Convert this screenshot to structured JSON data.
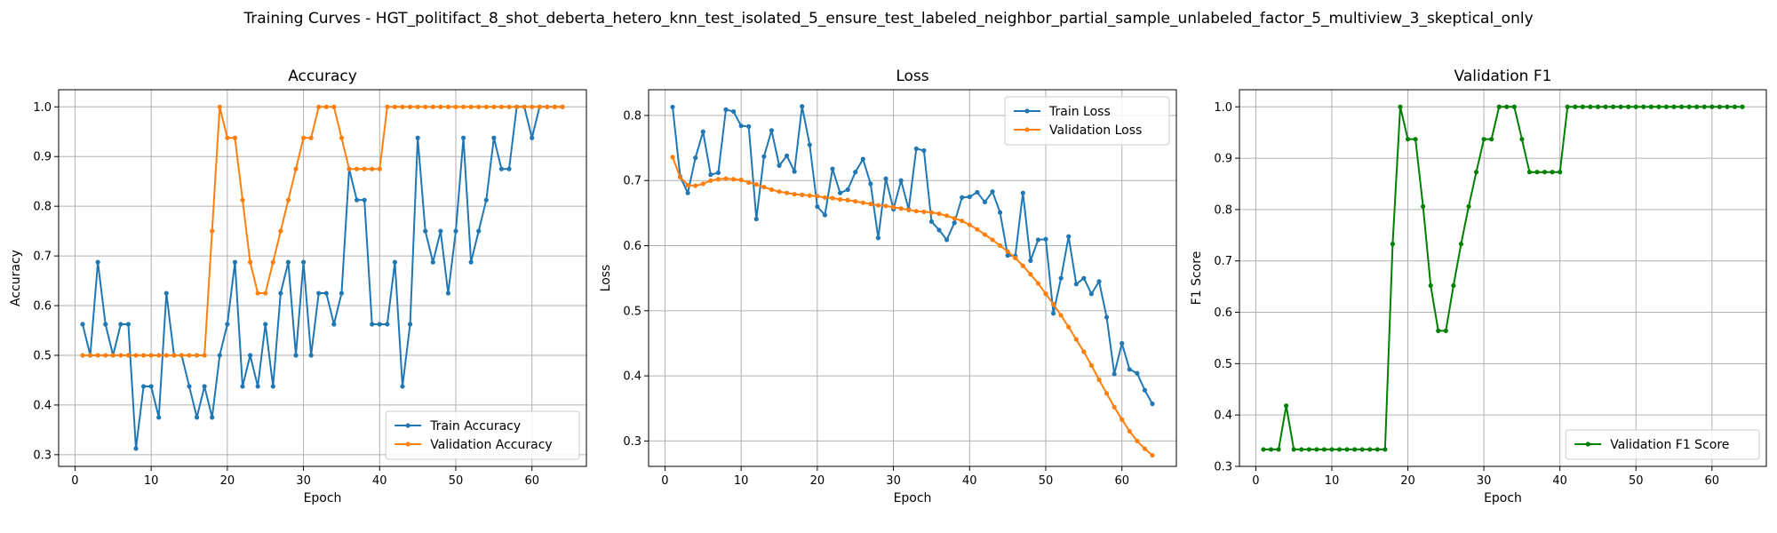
{
  "figure": {
    "suptitle": "Training Curves - HGT_politifact_8_shot_deberta_hetero_knn_test_isolated_5_ensure_test_labeled_neighbor_partial_sample_unlabeled_factor_5_multiview_3_skeptical_only"
  },
  "colors": {
    "blue": "#1f77b4",
    "orange": "#ff7f0e",
    "green": "#008000",
    "grid": "#b0b0b0"
  },
  "chart_data": [
    {
      "type": "line",
      "title": "Accuracy",
      "xlabel": "Epoch",
      "ylabel": "Accuracy",
      "xlim": [
        -2.15,
        67.15
      ],
      "ylim": [
        0.2765,
        1.0345
      ],
      "xticks": [
        0,
        10,
        20,
        30,
        40,
        50,
        60
      ],
      "yticks": [
        0.3,
        0.4,
        0.5,
        0.6,
        0.7,
        0.8,
        0.9,
        1.0
      ],
      "ytick_labels": [
        "0.3",
        "0.4",
        "0.5",
        "0.6",
        "0.7",
        "0.8",
        "0.9",
        "1.0"
      ],
      "grid": true,
      "legend": "lower-right",
      "x": [
        1,
        2,
        3,
        4,
        5,
        6,
        7,
        8,
        9,
        10,
        11,
        12,
        13,
        14,
        15,
        16,
        17,
        18,
        19,
        20,
        21,
        22,
        23,
        24,
        25,
        26,
        27,
        28,
        29,
        30,
        31,
        32,
        33,
        34,
        35,
        36,
        37,
        38,
        39,
        40,
        41,
        42,
        43,
        44,
        45,
        46,
        47,
        48,
        49,
        50,
        51,
        52,
        53,
        54,
        55,
        56,
        57,
        58,
        59,
        60,
        61,
        62,
        63,
        64
      ],
      "series": [
        {
          "name": "Train Accuracy",
          "color": "#1f77b4",
          "values": [
            0.5625,
            0.5,
            0.6875,
            0.5625,
            0.5,
            0.5625,
            0.5625,
            0.3125,
            0.4375,
            0.4375,
            0.375,
            0.625,
            0.5,
            0.5,
            0.4375,
            0.375,
            0.4375,
            0.375,
            0.5,
            0.5625,
            0.6875,
            0.4375,
            0.5,
            0.4375,
            0.5625,
            0.4375,
            0.625,
            0.6875,
            0.5,
            0.6875,
            0.5,
            0.625,
            0.625,
            0.5625,
            0.625,
            0.875,
            0.8125,
            0.8125,
            0.5625,
            0.5625,
            0.5625,
            0.6875,
            0.4375,
            0.5625,
            0.9375,
            0.75,
            0.6875,
            0.75,
            0.625,
            0.75,
            0.9375,
            0.6875,
            0.75,
            0.8125,
            0.9375,
            0.875,
            0.875,
            1.0,
            1.0,
            0.9375,
            1.0,
            1.0,
            1.0,
            1.0
          ]
        },
        {
          "name": "Validation Accuracy",
          "color": "#ff7f0e",
          "values": [
            0.5,
            0.5,
            0.5,
            0.5,
            0.5,
            0.5,
            0.5,
            0.5,
            0.5,
            0.5,
            0.5,
            0.5,
            0.5,
            0.5,
            0.5,
            0.5,
            0.5,
            0.75,
            1.0,
            0.9375,
            0.9375,
            0.8125,
            0.6875,
            0.625,
            0.625,
            0.6875,
            0.75,
            0.8125,
            0.875,
            0.9375,
            0.9375,
            1.0,
            1.0,
            1.0,
            0.9375,
            0.875,
            0.875,
            0.875,
            0.875,
            0.875,
            1.0,
            1.0,
            1.0,
            1.0,
            1.0,
            1.0,
            1.0,
            1.0,
            1.0,
            1.0,
            1.0,
            1.0,
            1.0,
            1.0,
            1.0,
            1.0,
            1.0,
            1.0,
            1.0,
            1.0,
            1.0,
            1.0,
            1.0,
            1.0
          ]
        }
      ]
    },
    {
      "type": "line",
      "title": "Loss",
      "xlabel": "Epoch",
      "ylabel": "Loss",
      "xlim": [
        -2.15,
        67.15
      ],
      "ylim": [
        0.261,
        0.8395
      ],
      "xticks": [
        0,
        10,
        20,
        30,
        40,
        50,
        60
      ],
      "yticks": [
        0.3,
        0.4,
        0.5,
        0.6,
        0.7,
        0.8
      ],
      "ytick_labels": [
        "0.3",
        "0.4",
        "0.5",
        "0.6",
        "0.7",
        "0.8"
      ],
      "grid": true,
      "legend": "top-right",
      "x": [
        1,
        2,
        3,
        4,
        5,
        6,
        7,
        8,
        9,
        10,
        11,
        12,
        13,
        14,
        15,
        16,
        17,
        18,
        19,
        20,
        21,
        22,
        23,
        24,
        25,
        26,
        27,
        28,
        29,
        30,
        31,
        32,
        33,
        34,
        35,
        36,
        37,
        38,
        39,
        40,
        41,
        42,
        43,
        44,
        45,
        46,
        47,
        48,
        49,
        50,
        51,
        52,
        53,
        54,
        55,
        56,
        57,
        58,
        59,
        60,
        61,
        62,
        63,
        64
      ],
      "series": [
        {
          "name": "Train Loss",
          "color": "#1f77b4",
          "values": [
            0.813,
            0.706,
            0.681,
            0.735,
            0.775,
            0.709,
            0.712,
            0.809,
            0.806,
            0.784,
            0.783,
            0.641,
            0.737,
            0.777,
            0.723,
            0.738,
            0.714,
            0.814,
            0.755,
            0.66,
            0.647,
            0.718,
            0.681,
            0.686,
            0.713,
            0.733,
            0.695,
            0.612,
            0.703,
            0.656,
            0.7,
            0.656,
            0.749,
            0.746,
            0.637,
            0.624,
            0.609,
            0.635,
            0.674,
            0.675,
            0.682,
            0.667,
            0.683,
            0.651,
            0.585,
            0.584,
            0.681,
            0.577,
            0.609,
            0.61,
            0.496,
            0.55,
            0.614,
            0.541,
            0.55,
            0.526,
            0.545,
            0.49,
            0.403,
            0.45,
            0.41,
            0.404,
            0.378,
            0.357
          ]
        },
        {
          "name": "Validation Loss",
          "color": "#ff7f0e",
          "values": [
            0.736,
            0.705,
            0.693,
            0.692,
            0.695,
            0.7,
            0.702,
            0.703,
            0.702,
            0.701,
            0.697,
            0.694,
            0.69,
            0.686,
            0.683,
            0.681,
            0.679,
            0.678,
            0.677,
            0.676,
            0.674,
            0.673,
            0.671,
            0.67,
            0.668,
            0.666,
            0.664,
            0.662,
            0.661,
            0.659,
            0.657,
            0.655,
            0.653,
            0.652,
            0.651,
            0.649,
            0.646,
            0.642,
            0.638,
            0.632,
            0.625,
            0.617,
            0.609,
            0.6,
            0.591,
            0.581,
            0.569,
            0.556,
            0.542,
            0.526,
            0.51,
            0.493,
            0.475,
            0.456,
            0.437,
            0.416,
            0.394,
            0.373,
            0.352,
            0.333,
            0.315,
            0.3,
            0.288,
            0.278
          ]
        }
      ]
    },
    {
      "type": "line",
      "title": "Validation F1",
      "xlabel": "Epoch",
      "ylabel": "F1 Score",
      "xlim": [
        -2.15,
        67.15
      ],
      "ylim": [
        0.3,
        1.0333
      ],
      "xticks": [
        0,
        10,
        20,
        30,
        40,
        50,
        60
      ],
      "yticks": [
        0.3,
        0.4,
        0.5,
        0.6,
        0.7,
        0.8,
        0.9,
        1.0
      ],
      "ytick_labels": [
        "0.3",
        "0.4",
        "0.5",
        "0.6",
        "0.7",
        "0.8",
        "0.9",
        "1.0"
      ],
      "grid": true,
      "legend": "lower-right",
      "x": [
        1,
        2,
        3,
        4,
        5,
        6,
        7,
        8,
        9,
        10,
        11,
        12,
        13,
        14,
        15,
        16,
        17,
        18,
        19,
        20,
        21,
        22,
        23,
        24,
        25,
        26,
        27,
        28,
        29,
        30,
        31,
        32,
        33,
        34,
        35,
        36,
        37,
        38,
        39,
        40,
        41,
        42,
        43,
        44,
        45,
        46,
        47,
        48,
        49,
        50,
        51,
        52,
        53,
        54,
        55,
        56,
        57,
        58,
        59,
        60,
        61,
        62,
        63,
        64
      ],
      "series": [
        {
          "name": "Validation F1 Score",
          "color": "#008000",
          "values": [
            0.333,
            0.333,
            0.333,
            0.418,
            0.333,
            0.333,
            0.333,
            0.333,
            0.333,
            0.333,
            0.333,
            0.333,
            0.333,
            0.333,
            0.333,
            0.333,
            0.333,
            0.733,
            1.0,
            0.937,
            0.937,
            0.806,
            0.652,
            0.564,
            0.564,
            0.652,
            0.733,
            0.806,
            0.873,
            0.937,
            0.937,
            1.0,
            1.0,
            1.0,
            0.937,
            0.873,
            0.873,
            0.873,
            0.873,
            0.873,
            1.0,
            1.0,
            1.0,
            1.0,
            1.0,
            1.0,
            1.0,
            1.0,
            1.0,
            1.0,
            1.0,
            1.0,
            1.0,
            1.0,
            1.0,
            1.0,
            1.0,
            1.0,
            1.0,
            1.0,
            1.0,
            1.0,
            1.0,
            1.0
          ]
        }
      ]
    }
  ]
}
